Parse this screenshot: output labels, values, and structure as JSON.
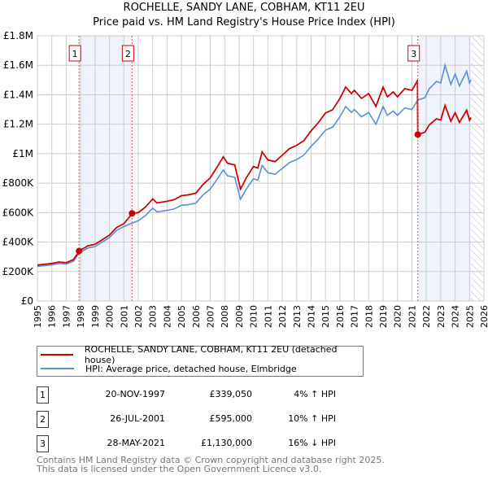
{
  "title": "ROCHELLE, SANDY LANE, COBHAM, KT11 2EU",
  "subtitle": "Price paid vs. HM Land Registry's House Price Index (HPI)",
  "chart_data": {
    "type": "line",
    "title": "ROCHELLE, SANDY LANE, COBHAM, KT11 2EU",
    "subtitle": "Price paid vs. HM Land Registry's House Price Index (HPI)",
    "xlim": [
      1995,
      2026
    ],
    "ylim": [
      0,
      1800000
    ],
    "yticks": [
      {
        "v": 0,
        "label": "£0"
      },
      {
        "v": 200000,
        "label": "£200K"
      },
      {
        "v": 400000,
        "label": "£400K"
      },
      {
        "v": 600000,
        "label": "£600K"
      },
      {
        "v": 800000,
        "label": "£800K"
      },
      {
        "v": 1000000,
        "label": "£1M"
      },
      {
        "v": 1200000,
        "label": "£1.2M"
      },
      {
        "v": 1400000,
        "label": "£1.4M"
      },
      {
        "v": 1600000,
        "label": "£1.6M"
      },
      {
        "v": 1800000,
        "label": "£1.8M"
      }
    ],
    "xticks": [
      "1995",
      "1996",
      "1997",
      "1998",
      "1999",
      "2000",
      "2001",
      "2002",
      "2003",
      "2004",
      "2005",
      "2006",
      "2007",
      "2008",
      "2009",
      "2010",
      "2011",
      "2012",
      "2013",
      "2014",
      "2015",
      "2016",
      "2017",
      "2018",
      "2019",
      "2020",
      "2021",
      "2022",
      "2023",
      "2024",
      "2025",
      "2026"
    ],
    "grid": true,
    "x": [
      1995,
      1996,
      1996.5,
      1997,
      1997.5,
      1997.9,
      1998.5,
      1999,
      1999.5,
      2000,
      2000.5,
      2001,
      2001.6,
      2002,
      2002.5,
      2003,
      2003.3,
      2004,
      2004.5,
      2005,
      2005.5,
      2006,
      2006.5,
      2007,
      2007.5,
      2007.9,
      2008.2,
      2008.7,
      2009.1,
      2009.5,
      2010,
      2010.3,
      2010.6,
      2011,
      2011.5,
      2012,
      2012.5,
      2013,
      2013.5,
      2014,
      2014.5,
      2015,
      2015.5,
      2016,
      2016.4,
      2016.8,
      2017,
      2017.5,
      2018,
      2018.5,
      2019,
      2019.3,
      2019.7,
      2020,
      2020.5,
      2021,
      2021.38,
      2021.41,
      2021.9,
      2022.2,
      2022.7,
      2023,
      2023.3,
      2023.7,
      2024,
      2024.3,
      2024.8,
      2025,
      2025.1
    ],
    "series": [
      {
        "name": "ROCHELLE, SANDY LANE, COBHAM, KT11 2EU (detached house)",
        "color": "#cc0000",
        "values_k": [
          244,
          255,
          265,
          260,
          281,
          339,
          375,
          385,
          416,
          447,
          499,
          525,
          595,
          600,
          638,
          693,
          666,
          677,
          688,
          715,
          721,
          732,
          792,
          836,
          913,
          979,
          935,
          924,
          759,
          836,
          913,
          902,
          1012,
          957,
          946,
          990,
          1034,
          1056,
          1089,
          1155,
          1210,
          1276,
          1298,
          1375,
          1452,
          1408,
          1430,
          1375,
          1408,
          1320,
          1452,
          1386,
          1419,
          1386,
          1441,
          1430,
          1496,
          1130,
          1145,
          1195,
          1237,
          1228,
          1328,
          1220,
          1278,
          1212,
          1295,
          1228,
          1245
        ]
      },
      {
        "name": "HPI: Average price, detached house, Elmbridge",
        "color": "#5b8fd0",
        "values_k": [
          235,
          245,
          255,
          250,
          270,
          325,
          360,
          370,
          400,
          430,
          480,
          505,
          530,
          545,
          580,
          630,
          605,
          615,
          625,
          650,
          655,
          665,
          720,
          760,
          830,
          890,
          850,
          840,
          690,
          760,
          830,
          820,
          920,
          870,
          860,
          900,
          940,
          960,
          990,
          1050,
          1100,
          1160,
          1180,
          1250,
          1320,
          1280,
          1300,
          1250,
          1280,
          1200,
          1320,
          1260,
          1290,
          1260,
          1310,
          1300,
          1360,
          1365,
          1380,
          1440,
          1490,
          1480,
          1600,
          1470,
          1540,
          1460,
          1560,
          1480,
          1500
        ]
      }
    ],
    "sales": [
      {
        "label": "1",
        "x": 1997.89,
        "value": 339050,
        "date": "20-NOV-1997",
        "price": "£339,050",
        "hpi": "4% ↑ HPI"
      },
      {
        "label": "2",
        "x": 2001.57,
        "value": 595000,
        "date": "26-JUL-2001",
        "price": "£595,000",
        "hpi": "10% ↑ HPI"
      },
      {
        "label": "3",
        "x": 2021.41,
        "value": 1130000,
        "date": "28-MAY-2021",
        "price": "£1,130,000",
        "hpi": "16% ↓ HPI"
      }
    ],
    "shaded_ranges": [
      [
        1997.89,
        2001.57
      ],
      [
        2021.41,
        2025.1
      ]
    ],
    "hatched_from": 2025.1
  },
  "legend": {
    "red": "ROCHELLE, SANDY LANE, COBHAM, KT11 2EU (detached house)",
    "blue": "HPI: Average price, detached house, Elmbridge"
  },
  "footer": [
    "Contains HM Land Registry data © Crown copyright and database right 2025.",
    "This data is licensed under the Open Government Licence v3.0."
  ]
}
